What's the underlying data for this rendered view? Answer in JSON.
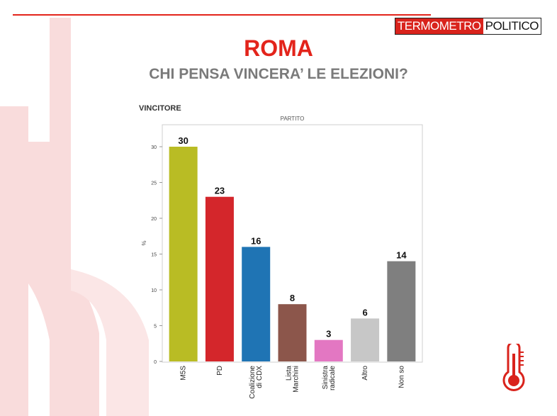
{
  "brand": {
    "part1": "TERMOMETRO",
    "part2": "POLITICO"
  },
  "title": "ROMA",
  "subtitle": "CHI PENSA VINCERA’ LE ELEZIONI?",
  "chart_heading": "VINCITORE",
  "colors": {
    "accent": "#e3241b",
    "bars": [
      "#b9bc24",
      "#d4262b",
      "#1f74b4",
      "#8c564b",
      "#e377c2",
      "#c7c7c7",
      "#7f7f7f"
    ]
  },
  "chart_data": {
    "type": "bar",
    "title": "PARTITO",
    "ylabel": "%",
    "xlabel": "",
    "ylim": [
      0,
      32
    ],
    "yticks": [
      0,
      5,
      10,
      15,
      20,
      25,
      30
    ],
    "categories": [
      [
        "M5S"
      ],
      [
        "PD"
      ],
      [
        "Coalizione",
        "di CDX"
      ],
      [
        "Lista",
        "Marchini"
      ],
      [
        "Sinistra",
        "radicale"
      ],
      [
        "Altro"
      ],
      [
        "Non so"
      ]
    ],
    "values": [
      30,
      23,
      16,
      8,
      3,
      6,
      14
    ],
    "grid": false,
    "legend": "none"
  }
}
